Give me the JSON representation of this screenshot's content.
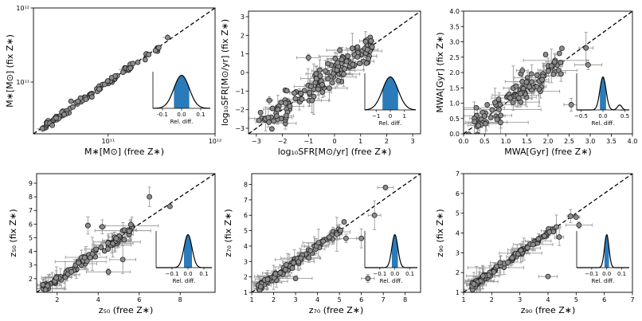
{
  "chart_data": [
    {
      "id": "mass",
      "type": "scatter",
      "xlabel": "M∗[M⊙] (free Z∗)",
      "ylabel": "M∗[M⊙] (fix Z∗)",
      "scale": "log",
      "xlim": [
        20000000000.0,
        1000000000000.0
      ],
      "ylim": [
        20000000000.0,
        1000000000000.0
      ],
      "xticks": [
        {
          "v": 100000000000.0,
          "t": "10¹¹"
        },
        {
          "v": 1000000000000.0,
          "t": "10¹²"
        }
      ],
      "yticks": [
        {
          "v": 100000000000.0,
          "t": "10¹¹"
        },
        {
          "v": 1000000000000.0,
          "t": "10¹²"
        }
      ],
      "trend": "tight",
      "scatter": 0.02,
      "errors": 0.02,
      "outliers": [
        [
          45000000000.0,
          55000000000.0
        ],
        [
          30000000000.0,
          26000000000.0
        ],
        [
          360000000000.0,
          400000000000.0
        ]
      ],
      "inset": {
        "xmin": -0.15,
        "xmax": 0.15,
        "ticks": [
          -0.1,
          0.0,
          0.1
        ],
        "ticklabels": [
          "-0.1",
          "0.0",
          "0.1"
        ],
        "label": "Rel. diff.",
        "sigma": 0.04,
        "bump": 0
      }
    },
    {
      "id": "sfr",
      "type": "scatter",
      "xlabel": "log₁₀SFR[M⊙/yr] (free Z∗)",
      "ylabel": "log₁₀SFR[M⊙/yr] (fix Z∗)",
      "scale": "linear",
      "xlim": [
        -3.3,
        3.3
      ],
      "ylim": [
        -3.3,
        3.3
      ],
      "xticks": [
        {
          "v": -3,
          "t": "−3"
        },
        {
          "v": -2,
          "t": "−2"
        },
        {
          "v": -1,
          "t": "−1"
        },
        {
          "v": 0,
          "t": "0"
        },
        {
          "v": 1,
          "t": "1"
        },
        {
          "v": 2,
          "t": "2"
        },
        {
          "v": 3,
          "t": "3"
        }
      ],
      "yticks": [
        {
          "v": -3,
          "t": "−3"
        },
        {
          "v": -2,
          "t": "−2"
        },
        {
          "v": -1,
          "t": "−1"
        },
        {
          "v": 0,
          "t": "0"
        },
        {
          "v": 1,
          "t": "1"
        },
        {
          "v": 2,
          "t": "2"
        },
        {
          "v": 3,
          "t": "3"
        }
      ],
      "trend": "dense",
      "scatter": 0.35,
      "errors": 0.4,
      "outliers": [
        [
          -1.0,
          0.8
        ],
        [
          0.2,
          1.2
        ],
        [
          -2.5,
          -1.5
        ],
        [
          1.4,
          1.7
        ]
      ],
      "inset": {
        "xmin": -1.8,
        "xmax": 1.8,
        "ticks": [
          -1,
          0,
          1
        ],
        "ticklabels": [
          "−1",
          "0",
          "1"
        ],
        "label": "Rel. diff.",
        "sigma": 0.55,
        "bump": 0
      }
    },
    {
      "id": "mwa",
      "type": "scatter",
      "xlabel": "MWA[Gyr] (free Z∗)",
      "ylabel": "MWA[Gyr] (fix Z∗)",
      "scale": "linear",
      "xlim": [
        0,
        4
      ],
      "ylim": [
        0,
        4
      ],
      "xticks": [
        {
          "v": 0,
          "t": "0.0"
        },
        {
          "v": 0.5,
          "t": "0.5"
        },
        {
          "v": 1,
          "t": "1.0"
        },
        {
          "v": 1.5,
          "t": "1.5"
        },
        {
          "v": 2,
          "t": "2.0"
        },
        {
          "v": 2.5,
          "t": "2.5"
        },
        {
          "v": 3,
          "t": "3.0"
        },
        {
          "v": 3.5,
          "t": "3.5"
        },
        {
          "v": 4,
          "t": "4.0"
        }
      ],
      "yticks": [
        {
          "v": 0,
          "t": "0.0"
        },
        {
          "v": 0.5,
          "t": "0.5"
        },
        {
          "v": 1,
          "t": "1.0"
        },
        {
          "v": 1.5,
          "t": "1.5"
        },
        {
          "v": 2,
          "t": "2.0"
        },
        {
          "v": 2.5,
          "t": "2.5"
        },
        {
          "v": 3,
          "t": "3.0"
        },
        {
          "v": 3.5,
          "t": "3.5"
        },
        {
          "v": 4,
          "t": "4.0"
        }
      ],
      "trend": "cloud",
      "scatter": 0.3,
      "errors": 0.3,
      "outliers": [
        [
          2.9,
          2.8
        ],
        [
          2.95,
          2.25
        ],
        [
          2.55,
          0.95
        ],
        [
          3.75,
          1.1
        ],
        [
          0.3,
          0.85
        ]
      ],
      "inset": {
        "xmin": -0.6,
        "xmax": 0.6,
        "ticks": [
          -0.5,
          0.0,
          0.5
        ],
        "ticklabels": [
          "−0.5",
          "0.0",
          "0.5"
        ],
        "label": "Rel. diff.",
        "sigma": 0.07,
        "bump": 1
      }
    },
    {
      "id": "z50",
      "type": "scatter",
      "xlabel": "z₅₀ (free Z∗)",
      "ylabel": "z₅₀ (fix Z∗)",
      "scale": "linear",
      "xlim": [
        1,
        9.7
      ],
      "ylim": [
        1,
        9.7
      ],
      "xticks": [
        {
          "v": 2,
          "t": "2"
        },
        {
          "v": 4,
          "t": "4"
        },
        {
          "v": 6,
          "t": "6"
        },
        {
          "v": 8,
          "t": "8"
        }
      ],
      "yticks": [
        {
          "v": 2,
          "t": "2"
        },
        {
          "v": 3,
          "t": "3"
        },
        {
          "v": 4,
          "t": "4"
        },
        {
          "v": 5,
          "t": "5"
        },
        {
          "v": 6,
          "t": "6"
        },
        {
          "v": 7,
          "t": "7"
        },
        {
          "v": 8,
          "t": "8"
        },
        {
          "v": 9,
          "t": "9"
        }
      ],
      "trend": "tight",
      "scatter": 0.2,
      "errors": 0.5,
      "outliers": [
        [
          3.5,
          5.9
        ],
        [
          4.2,
          5.8
        ],
        [
          7.5,
          7.3
        ],
        [
          6.5,
          8.0
        ],
        [
          4.5,
          2.5
        ],
        [
          5.2,
          3.4
        ]
      ],
      "inset": {
        "xmin": -0.2,
        "xmax": 0.15,
        "ticks": [
          -0.1,
          0.0,
          0.1
        ],
        "ticklabels": [
          "−0.1",
          "0.0",
          "0.1"
        ],
        "label": "Rel. diff.",
        "sigma": 0.025,
        "bump": 0
      }
    },
    {
      "id": "z70",
      "type": "scatter",
      "xlabel": "z₇₀ (free Z∗)",
      "ylabel": "z₇₀ (fix Z∗)",
      "scale": "linear",
      "xlim": [
        1,
        8.7
      ],
      "ylim": [
        1,
        8.7
      ],
      "xticks": [
        {
          "v": 1,
          "t": "1"
        },
        {
          "v": 2,
          "t": "2"
        },
        {
          "v": 3,
          "t": "3"
        },
        {
          "v": 4,
          "t": "4"
        },
        {
          "v": 5,
          "t": "5"
        },
        {
          "v": 6,
          "t": "6"
        },
        {
          "v": 7,
          "t": "7"
        },
        {
          "v": 8,
          "t": "8"
        }
      ],
      "yticks": [
        {
          "v": 1,
          "t": "1"
        },
        {
          "v": 2,
          "t": "2"
        },
        {
          "v": 3,
          "t": "3"
        },
        {
          "v": 4,
          "t": "4"
        },
        {
          "v": 5,
          "t": "5"
        },
        {
          "v": 6,
          "t": "6"
        },
        {
          "v": 7,
          "t": "7"
        },
        {
          "v": 8,
          "t": "8"
        }
      ],
      "trend": "tight",
      "scatter": 0.15,
      "errors": 0.4,
      "outliers": [
        [
          7.1,
          7.8
        ],
        [
          6.6,
          6.0
        ],
        [
          5.3,
          4.5
        ],
        [
          6.0,
          4.5
        ],
        [
          3.0,
          1.9
        ],
        [
          6.3,
          1.9
        ]
      ],
      "inset": {
        "xmin": -0.2,
        "xmax": 0.15,
        "ticks": [
          -0.1,
          0.0,
          0.1
        ],
        "ticklabels": [
          "−0.1",
          "0.0",
          "0.1"
        ],
        "label": "Rel. diff.",
        "sigma": 0.02,
        "bump": 0
      }
    },
    {
      "id": "z90",
      "type": "scatter",
      "xlabel": "z₉₀ (free Z∗)",
      "ylabel": "z₉₀ (fix Z∗)",
      "scale": "linear",
      "xlim": [
        1,
        7
      ],
      "ylim": [
        1,
        7
      ],
      "xticks": [
        {
          "v": 1,
          "t": "1"
        },
        {
          "v": 2,
          "t": "2"
        },
        {
          "v": 3,
          "t": "3"
        },
        {
          "v": 4,
          "t": "4"
        },
        {
          "v": 5,
          "t": "5"
        },
        {
          "v": 6,
          "t": "6"
        },
        {
          "v": 7,
          "t": "7"
        }
      ],
      "yticks": [
        {
          "v": 1,
          "t": "1"
        },
        {
          "v": 2,
          "t": "2"
        },
        {
          "v": 3,
          "t": "3"
        },
        {
          "v": 4,
          "t": "4"
        },
        {
          "v": 5,
          "t": "5"
        },
        {
          "v": 6,
          "t": "6"
        },
        {
          "v": 7,
          "t": "7"
        }
      ],
      "trend": "tight",
      "scatter": 0.08,
      "errors": 0.25,
      "outliers": [
        [
          5.0,
          4.8
        ],
        [
          4.8,
          4.85
        ],
        [
          5.1,
          4.4
        ],
        [
          4.0,
          1.8
        ],
        [
          4.4,
          3.8
        ],
        [
          2.3,
          2.5
        ]
      ],
      "inset": {
        "xmin": -0.2,
        "xmax": 0.15,
        "ticks": [
          -0.1,
          0.0,
          0.1
        ],
        "ticklabels": [
          "−0.1",
          "0.0",
          "0.1"
        ],
        "label": "Rel. diff.",
        "sigma": 0.015,
        "bump": 0
      }
    }
  ]
}
